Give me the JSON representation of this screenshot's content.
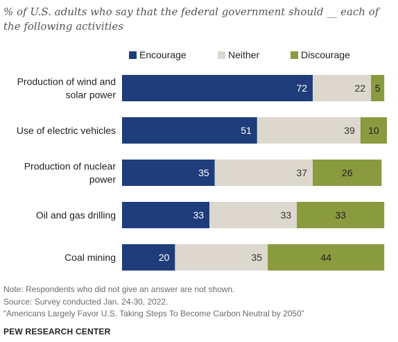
{
  "chart_data": {
    "type": "bar",
    "orientation": "horizontal",
    "stacked": true,
    "subtitle": "% of U.S. adults who say that the federal government should __ each of the following activities",
    "categories": [
      "Production of wind and solar power",
      "Use of electric vehicles",
      "Production of nuclear power",
      "Oil and gas drilling",
      "Coal mining"
    ],
    "series": [
      {
        "name": "Encourage",
        "color": "#1f3d7a",
        "values": [
          72,
          51,
          35,
          33,
          20
        ]
      },
      {
        "name": "Neither",
        "color": "#dcd8cd",
        "values": [
          22,
          39,
          37,
          33,
          35
        ]
      },
      {
        "name": "Discourage",
        "color": "#8a9a3f",
        "values": [
          5,
          10,
          26,
          33,
          44
        ]
      }
    ],
    "xlim": [
      0,
      100
    ],
    "legend_position": "top",
    "grid": false
  },
  "footer": {
    "note": "Note: Respondents who did not give an answer are not shown.",
    "source": "Source: Survey conducted Jan. 24-30, 2022.",
    "report": "“Americans Largely Favor U.S. Taking Steps To Become Carbon Neutral by 2050”",
    "org": "PEW RESEARCH CENTER"
  }
}
